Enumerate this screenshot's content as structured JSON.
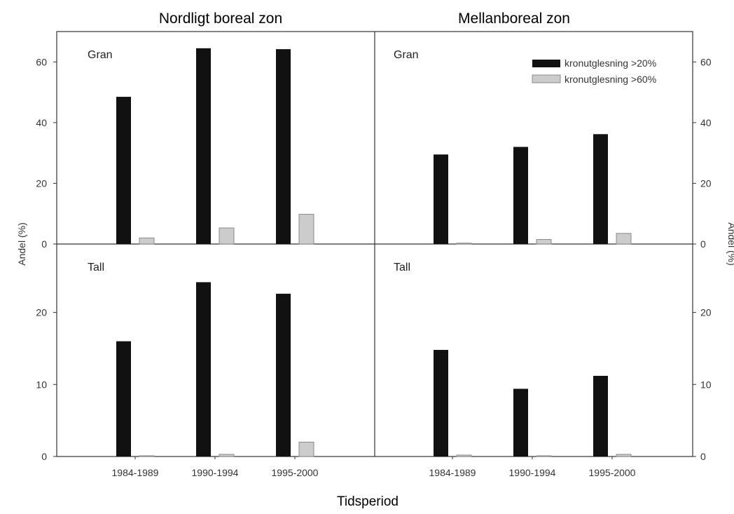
{
  "xlabel": "Tidsperiod",
  "ylabel": "Andel (%)",
  "legend": {
    "dark": "kronutglesning >20%",
    "light": "kronutglesning >60%",
    "colors": {
      "dark": "#111111",
      "light": "#cccccc"
    }
  },
  "chart_data": [
    {
      "type": "bar",
      "title": "Nordligt boreal zon",
      "panel_label": "Gran",
      "categories": [
        "1984-1989",
        "1990-1994",
        "1995-2000"
      ],
      "series": [
        {
          "name": "kronutglesning >20%",
          "values": [
            48.5,
            64.5,
            64.2
          ]
        },
        {
          "name": "kronutglesning >60%",
          "values": [
            2.0,
            5.3,
            9.8
          ]
        }
      ],
      "ylim": [
        0,
        70
      ],
      "yticks": [
        0,
        20,
        40,
        60
      ]
    },
    {
      "type": "bar",
      "title": "Mellanboreal zon",
      "panel_label": "Gran",
      "categories": [
        "1984-1989",
        "1990-1994",
        "1995-2000"
      ],
      "series": [
        {
          "name": "kronutglesning >20%",
          "values": [
            29.5,
            32.0,
            36.2
          ]
        },
        {
          "name": "kronutglesning >60%",
          "values": [
            0.3,
            1.5,
            3.5
          ]
        }
      ],
      "ylim": [
        0,
        70
      ],
      "yticks": [
        0,
        20,
        40,
        60
      ]
    },
    {
      "type": "bar",
      "title": "",
      "panel_label": "Tall",
      "categories": [
        "1984-1989",
        "1990-1994",
        "1995-2000"
      ],
      "series": [
        {
          "name": "kronutglesning >20%",
          "values": [
            16.0,
            24.2,
            22.6
          ]
        },
        {
          "name": "kronutglesning >60%",
          "values": [
            0.1,
            0.3,
            2.0
          ]
        }
      ],
      "ylim": [
        0,
        29.5
      ],
      "yticks": [
        0,
        10,
        20
      ]
    },
    {
      "type": "bar",
      "title": "",
      "panel_label": "Tall",
      "categories": [
        "1984-1989",
        "1990-1994",
        "1995-2000"
      ],
      "series": [
        {
          "name": "kronutglesning >20%",
          "values": [
            14.8,
            9.4,
            11.2
          ]
        },
        {
          "name": "kronutglesning >60%",
          "values": [
            0.2,
            0.1,
            0.3
          ]
        }
      ],
      "ylim": [
        0,
        29.5
      ],
      "yticks": [
        0,
        10,
        20
      ]
    }
  ]
}
